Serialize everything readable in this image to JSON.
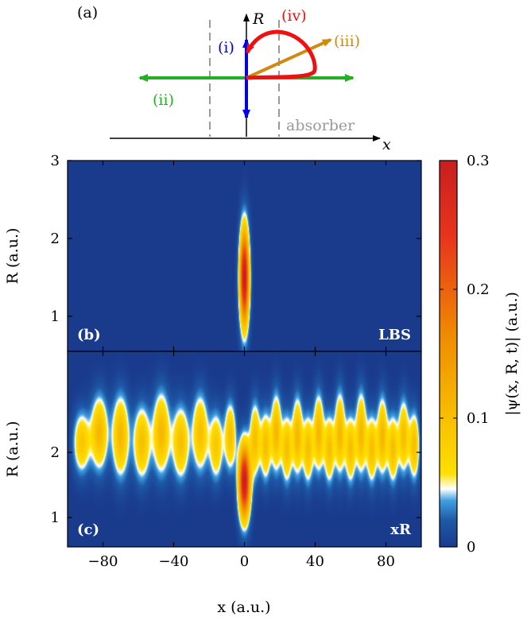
{
  "schematic": {
    "label": "(a)",
    "r_axis": "R",
    "x_axis": "x",
    "absorber": "absorber",
    "paths": [
      {
        "label": "(i)",
        "color": "#0000ee"
      },
      {
        "label": "(ii)",
        "color": "#22b022"
      },
      {
        "label": "(iii)",
        "color": "#d08a10"
      },
      {
        "label": "(iv)",
        "color": "#ee1111"
      }
    ]
  },
  "chart_data": [
    {
      "type": "heatmap",
      "panel_label": "(b)",
      "tag": "LBS",
      "ylabel": "R (a.u.)",
      "xlim": [
        -100,
        100
      ],
      "ylim": [
        0.55,
        3
      ],
      "yticks": [
        "1",
        "2",
        "3"
      ],
      "blobs": [
        {
          "x": 0,
          "R": 1.5,
          "sx": 1.8,
          "sR": 0.42,
          "amp": 0.3
        }
      ]
    },
    {
      "type": "heatmap",
      "panel_label": "(c)",
      "tag": "xR",
      "xlabel": "x (a.u.)",
      "ylabel": "R (a.u.)",
      "xlim": [
        -100,
        100
      ],
      "ylim": [
        0.55,
        3.55
      ],
      "xticks": [
        "−80",
        "−40",
        "0",
        "40",
        "80"
      ],
      "yticks": [
        "1",
        "2"
      ],
      "blobs": [
        {
          "x": 0,
          "R": 1.55,
          "sx": 2.2,
          "sR": 0.38,
          "amp": 0.3
        },
        {
          "x": -92,
          "R": 2.15,
          "sx": 3.2,
          "sR": 0.32,
          "amp": 0.09
        },
        {
          "x": -82,
          "R": 2.3,
          "sx": 3.2,
          "sR": 0.38,
          "amp": 0.11
        },
        {
          "x": -70,
          "R": 2.25,
          "sx": 3.2,
          "sR": 0.42,
          "amp": 0.11
        },
        {
          "x": -58,
          "R": 2.15,
          "sx": 3.2,
          "sR": 0.38,
          "amp": 0.1
        },
        {
          "x": -47,
          "R": 2.3,
          "sx": 3.2,
          "sR": 0.42,
          "amp": 0.11
        },
        {
          "x": -36,
          "R": 2.15,
          "sx": 3.2,
          "sR": 0.38,
          "amp": 0.1
        },
        {
          "x": -25,
          "R": 2.3,
          "sx": 3.0,
          "sR": 0.4,
          "amp": 0.1
        },
        {
          "x": -16,
          "R": 2.1,
          "sx": 2.6,
          "sR": 0.35,
          "amp": 0.09
        },
        {
          "x": -8,
          "R": 2.25,
          "sx": 2.2,
          "sR": 0.35,
          "amp": 0.1
        },
        {
          "x": 6,
          "R": 2.2,
          "sx": 2.0,
          "sR": 0.38,
          "amp": 0.1
        },
        {
          "x": 12,
          "R": 2.1,
          "sx": 2.0,
          "sR": 0.35,
          "amp": 0.1
        },
        {
          "x": 18,
          "R": 2.3,
          "sx": 2.0,
          "sR": 0.4,
          "amp": 0.11
        },
        {
          "x": 24,
          "R": 2.05,
          "sx": 2.0,
          "sR": 0.35,
          "amp": 0.1
        },
        {
          "x": 30,
          "R": 2.25,
          "sx": 2.0,
          "sR": 0.4,
          "amp": 0.11
        },
        {
          "x": 36,
          "R": 2.05,
          "sx": 2.0,
          "sR": 0.35,
          "amp": 0.1
        },
        {
          "x": 42,
          "R": 2.3,
          "sx": 2.0,
          "sR": 0.4,
          "amp": 0.11
        },
        {
          "x": 48,
          "R": 2.05,
          "sx": 2.0,
          "sR": 0.35,
          "amp": 0.1
        },
        {
          "x": 54,
          "R": 2.3,
          "sx": 2.0,
          "sR": 0.42,
          "amp": 0.11
        },
        {
          "x": 60,
          "R": 2.05,
          "sx": 2.0,
          "sR": 0.35,
          "amp": 0.1
        },
        {
          "x": 66,
          "R": 2.3,
          "sx": 2.0,
          "sR": 0.42,
          "amp": 0.11
        },
        {
          "x": 72,
          "R": 2.05,
          "sx": 2.0,
          "sR": 0.35,
          "amp": 0.1
        },
        {
          "x": 78,
          "R": 2.25,
          "sx": 2.0,
          "sR": 0.4,
          "amp": 0.11
        },
        {
          "x": 84,
          "R": 2.05,
          "sx": 2.0,
          "sR": 0.35,
          "amp": 0.1
        },
        {
          "x": 90,
          "R": 2.25,
          "sx": 2.0,
          "sR": 0.38,
          "amp": 0.1
        },
        {
          "x": 96,
          "R": 2.1,
          "sx": 2.0,
          "sR": 0.35,
          "amp": 0.1
        }
      ]
    }
  ],
  "colorbar": {
    "label": "|ψ(x, R, t)| (a.u.)",
    "range": [
      0,
      0.3
    ],
    "ticks": [
      "0",
      "0.1",
      "0.2",
      "0.3"
    ],
    "colors": [
      "#1a3a8c",
      "#ffffff",
      "#ffe000",
      "#f08a00",
      "#e8351c",
      "#c81e1e"
    ]
  }
}
